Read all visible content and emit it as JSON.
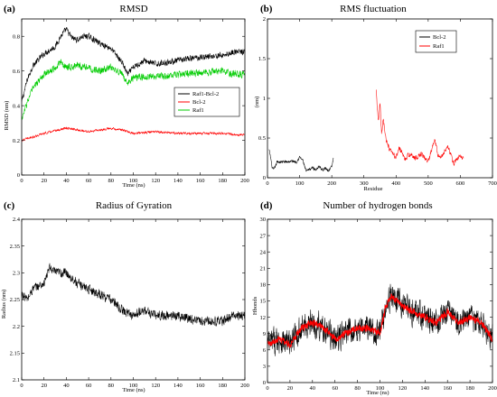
{
  "figure": {
    "panels": [
      {
        "label": "(a)",
        "title": "RMSD"
      },
      {
        "label": "(b)",
        "title": "RMS fluctuation"
      },
      {
        "label": "(c)",
        "title": "Radius of Gyration"
      },
      {
        "label": "(d)",
        "title": "Number of hydrogen bonds"
      }
    ]
  },
  "chart_data": [
    {
      "type": "line",
      "title": "RMSD",
      "xlabel": "Time (ns)",
      "ylabel": "RMSD (nm)",
      "xlim": [
        0,
        200
      ],
      "ylim": [
        0,
        0.9
      ],
      "xticks": [
        0,
        20,
        40,
        60,
        80,
        100,
        120,
        140,
        160,
        180,
        200
      ],
      "yticks": [
        0,
        0.2,
        0.4,
        0.6,
        0.8
      ],
      "ytick_labels": [
        "0",
        "0.2",
        "0.4",
        "0.6",
        "0.8"
      ],
      "legend_position": "center-right",
      "series": [
        {
          "name": "Raf1-Bcl-2",
          "color": "#000000",
          "noise": 0.022,
          "x": [
            0,
            5,
            10,
            20,
            30,
            35,
            40,
            45,
            50,
            55,
            60,
            70,
            80,
            85,
            90,
            95,
            100,
            110,
            120,
            140,
            160,
            180,
            190,
            200
          ],
          "y": [
            0.42,
            0.55,
            0.63,
            0.7,
            0.74,
            0.8,
            0.84,
            0.79,
            0.78,
            0.8,
            0.8,
            0.76,
            0.73,
            0.69,
            0.65,
            0.58,
            0.62,
            0.66,
            0.64,
            0.66,
            0.68,
            0.69,
            0.71,
            0.71
          ]
        },
        {
          "name": "Bcl-2",
          "color": "#ff0000",
          "noise": 0.009,
          "x": [
            0,
            5,
            10,
            20,
            40,
            60,
            80,
            90,
            100,
            120,
            140,
            160,
            180,
            200
          ],
          "y": [
            0.2,
            0.21,
            0.22,
            0.24,
            0.27,
            0.25,
            0.27,
            0.26,
            0.24,
            0.25,
            0.24,
            0.24,
            0.24,
            0.23
          ]
        },
        {
          "name": "Raf1",
          "color": "#00cc00",
          "noise": 0.026,
          "x": [
            0,
            5,
            10,
            20,
            30,
            35,
            40,
            50,
            60,
            70,
            80,
            90,
            95,
            100,
            120,
            140,
            160,
            180,
            190,
            200
          ],
          "y": [
            0.32,
            0.42,
            0.5,
            0.58,
            0.62,
            0.65,
            0.62,
            0.63,
            0.62,
            0.6,
            0.62,
            0.58,
            0.53,
            0.56,
            0.57,
            0.58,
            0.59,
            0.6,
            0.58,
            0.58
          ]
        }
      ]
    },
    {
      "type": "line",
      "title": "RMS fluctuation",
      "xlabel": "Residue",
      "ylabel": "(nm)",
      "xlim": [
        0,
        700
      ],
      "ylim": [
        0,
        2
      ],
      "xticks": [
        0,
        100,
        200,
        300,
        400,
        500,
        600,
        700
      ],
      "yticks": [
        0,
        0.5,
        1,
        1.5,
        2
      ],
      "ytick_labels": [
        "0",
        "0.5",
        "1",
        "1.5",
        "2"
      ],
      "legend_position": "top-right",
      "series": [
        {
          "name": "Bcl-2",
          "color": "#000000",
          "noise": 0.025,
          "x": [
            5,
            10,
            15,
            20,
            30,
            40,
            60,
            80,
            90,
            100,
            110,
            120,
            130,
            140,
            150,
            160,
            170,
            180,
            190,
            200,
            205
          ],
          "y": [
            0.35,
            0.25,
            0.12,
            0.1,
            0.2,
            0.2,
            0.2,
            0.21,
            0.2,
            0.26,
            0.22,
            0.08,
            0.1,
            0.13,
            0.1,
            0.15,
            0.1,
            0.12,
            0.09,
            0.14,
            0.24
          ]
        },
        {
          "name": "Raf1",
          "color": "#ff0000",
          "noise": 0.04,
          "x": [
            338,
            342,
            346,
            350,
            355,
            360,
            370,
            380,
            390,
            400,
            410,
            420,
            430,
            440,
            460,
            480,
            500,
            520,
            530,
            540,
            560,
            580,
            600,
            610
          ],
          "y": [
            1.1,
            0.85,
            0.7,
            0.95,
            0.55,
            0.75,
            0.45,
            0.35,
            0.3,
            0.25,
            0.38,
            0.3,
            0.22,
            0.3,
            0.25,
            0.3,
            0.2,
            0.5,
            0.3,
            0.25,
            0.4,
            0.18,
            0.28,
            0.25
          ]
        }
      ]
    },
    {
      "type": "line",
      "title": "Radius of Gyration",
      "xlabel": "Time (ns)",
      "ylabel": "Radius (nm)",
      "xlim": [
        0,
        200
      ],
      "ylim": [
        2.1,
        2.4
      ],
      "xticks": [
        0,
        20,
        40,
        60,
        80,
        100,
        120,
        140,
        160,
        180,
        200
      ],
      "yticks": [
        2.1,
        2.15,
        2.2,
        2.25,
        2.3,
        2.35,
        2.4
      ],
      "ytick_labels": [
        "2.1",
        "2.15",
        "2.2",
        "2.25",
        "2.3",
        "2.35",
        "2.4"
      ],
      "series": [
        {
          "name": "",
          "color": "#000000",
          "noise": 0.011,
          "x": [
            0,
            5,
            10,
            20,
            25,
            30,
            40,
            50,
            60,
            70,
            80,
            90,
            100,
            110,
            120,
            140,
            160,
            180,
            190,
            200
          ],
          "y": [
            2.26,
            2.25,
            2.27,
            2.28,
            2.31,
            2.3,
            2.3,
            2.28,
            2.27,
            2.26,
            2.25,
            2.23,
            2.22,
            2.23,
            2.22,
            2.22,
            2.21,
            2.21,
            2.22,
            2.22
          ]
        }
      ]
    },
    {
      "type": "line",
      "title": "Number of hydrogen bonds",
      "xlabel": "Time (ns)",
      "ylabel": "Hbonds",
      "xlim": [
        0,
        200
      ],
      "ylim": [
        0,
        30
      ],
      "xticks": [
        0,
        20,
        40,
        60,
        80,
        100,
        120,
        140,
        160,
        180,
        200
      ],
      "yticks": [
        0,
        3,
        6,
        9,
        12,
        15,
        18,
        21,
        24,
        27,
        30
      ],
      "ytick_labels": [
        "0",
        "3",
        "6",
        "9",
        "12",
        "15",
        "18",
        "21",
        "24",
        "27",
        "30"
      ],
      "series": [
        {
          "name": "",
          "color": "#000000",
          "noise": 3.2,
          "x": [
            0,
            10,
            20,
            30,
            40,
            50,
            60,
            70,
            80,
            90,
            100,
            105,
            110,
            120,
            130,
            140,
            150,
            160,
            170,
            180,
            190,
            200
          ],
          "y": [
            7,
            8,
            7,
            10,
            11,
            10,
            8,
            9,
            10,
            10,
            9,
            14,
            16,
            14,
            13,
            12,
            11,
            13,
            11,
            12,
            11,
            8
          ]
        },
        {
          "name": "",
          "color": "#ff0000",
          "noise": 0.8,
          "x": [
            0,
            10,
            20,
            30,
            40,
            50,
            60,
            70,
            80,
            90,
            100,
            105,
            110,
            120,
            130,
            140,
            150,
            160,
            170,
            180,
            190,
            200
          ],
          "y": [
            7,
            8,
            7,
            10,
            11,
            10,
            8,
            9,
            10,
            10,
            9,
            14,
            16,
            14,
            13,
            12,
            11,
            13,
            11,
            12,
            11,
            8
          ]
        }
      ]
    }
  ]
}
